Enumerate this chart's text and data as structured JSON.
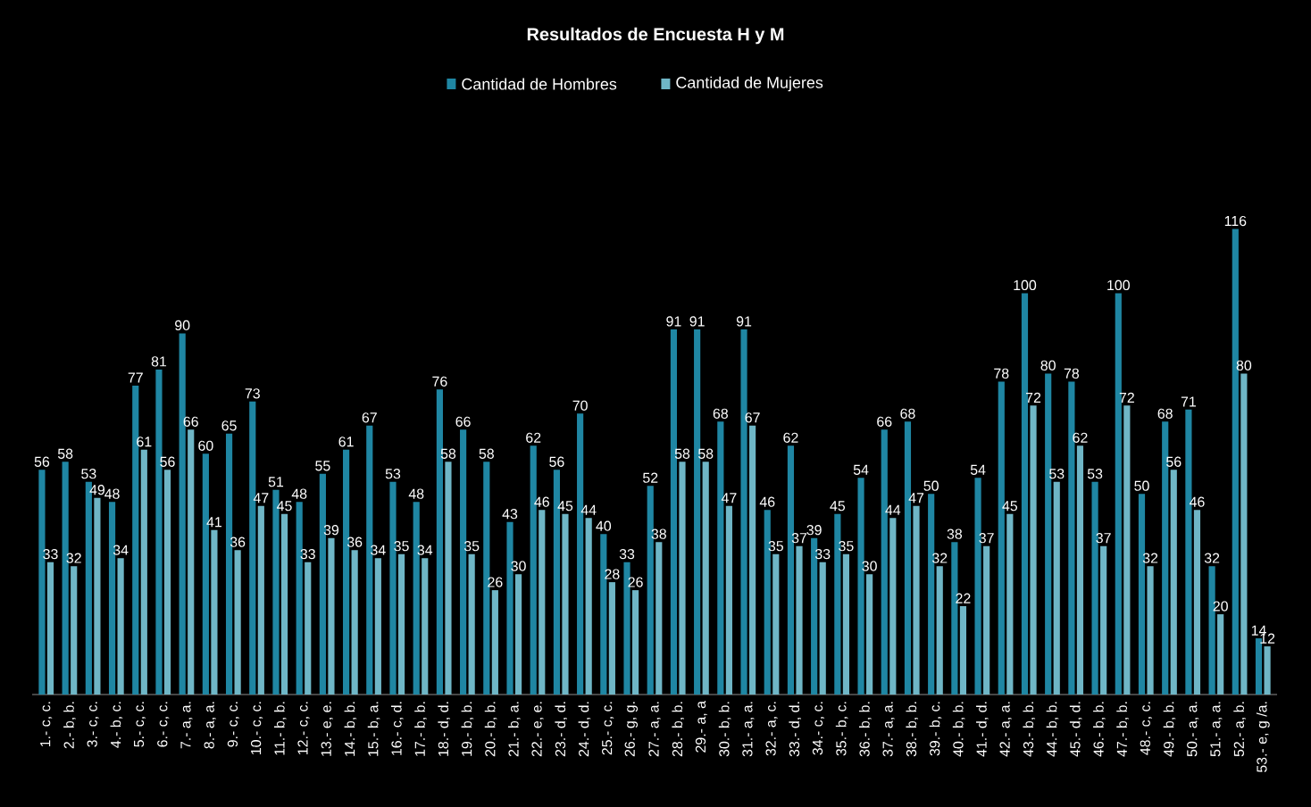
{
  "chart_data": {
    "type": "bar",
    "title": "Resultados de Encuesta H y M",
    "categories": [
      "1.- c, c.",
      "2.- b, b.",
      "3.- c, c.",
      "4.- b, c.",
      "5.- c, c.",
      "6.- c, c.",
      "7.- a, a.",
      "8.- a, a.",
      "9.- c, c.",
      "10.- c, c.",
      "11.- b, b.",
      "12.- c, c.",
      "13.- e, e.",
      "14.- b, b.",
      "15.- b, a.",
      "16.- c, d.",
      "17.- b, b.",
      "18.- d, d.",
      "19.- b, b.",
      "20.- b, b.",
      "21.- b, a.",
      "22.- e, e.",
      "23.- d, d.",
      "24.- d, d.",
      "25.- c, c.",
      "26.- g, g.",
      "27.- a, a.",
      "28.- b, b.",
      "29.- a, a",
      "30.- b, b.",
      "31.- a, a.",
      "32.- a, c.",
      "33.- d, d.",
      "34.- c, c.",
      "35.- b, c.",
      "36.- b, b.",
      "37.- a, a.",
      "38.- b, b.",
      "39.- b, c.",
      "40.- b, b.",
      "41.- d, d.",
      "42.- a, a.",
      "43.- b, b.",
      "44.- b, b.",
      "45.- d, d.",
      "46.- b, b.",
      "47.- b, b.",
      "48.- c, c.",
      "49.- b, b.",
      "50.- a, a.",
      "51.- a, a.",
      "52.- a, b.",
      "53.- e, g /a."
    ],
    "series": [
      {
        "name": "Cantidad de Hombres",
        "color": "#1f86a3",
        "values": [
          56,
          58,
          53,
          48,
          77,
          81,
          90,
          60,
          65,
          73,
          51,
          48,
          55,
          61,
          67,
          53,
          48,
          76,
          66,
          58,
          43,
          62,
          56,
          70,
          40,
          33,
          52,
          91,
          91,
          68,
          91,
          46,
          62,
          39,
          45,
          54,
          66,
          68,
          50,
          38,
          54,
          78,
          100,
          80,
          78,
          53,
          100,
          50,
          68,
          71,
          32,
          116,
          14
        ]
      },
      {
        "name": "Cantidad de Mujeres",
        "color": "#6fb6c6",
        "values": [
          33,
          32,
          49,
          34,
          61,
          56,
          66,
          41,
          36,
          47,
          45,
          33,
          39,
          36,
          34,
          35,
          34,
          58,
          35,
          26,
          30,
          46,
          45,
          44,
          28,
          26,
          38,
          58,
          58,
          47,
          67,
          35,
          37,
          33,
          35,
          30,
          44,
          47,
          32,
          22,
          37,
          45,
          72,
          53,
          62,
          37,
          72,
          32,
          56,
          46,
          20,
          80,
          12
        ]
      }
    ],
    "data_labels": true,
    "legend": "top",
    "grid": false
  }
}
